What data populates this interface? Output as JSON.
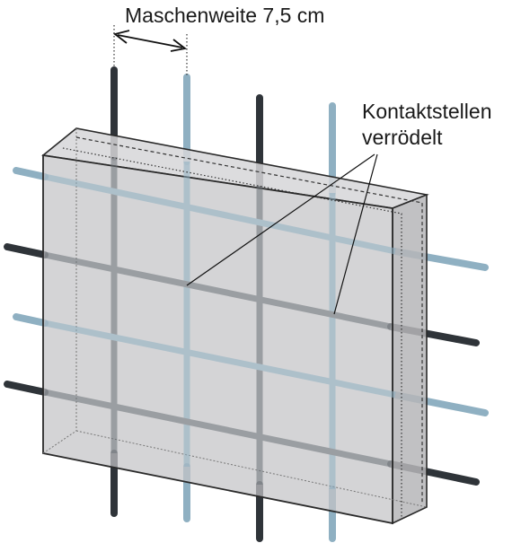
{
  "labels": {
    "mesh_width": "Maschenweite 7,5 cm",
    "contact_line1": "Kontaktstellen",
    "contact_line2": "verrödelt"
  },
  "colors": {
    "bar_dark": "#2f3439",
    "bar_light": "#8fb0c2",
    "block_front": "#bdbdbf",
    "block_top": "#d4d4d6",
    "block_side": "#b0b0b2",
    "edge": "#2a2a2a"
  }
}
